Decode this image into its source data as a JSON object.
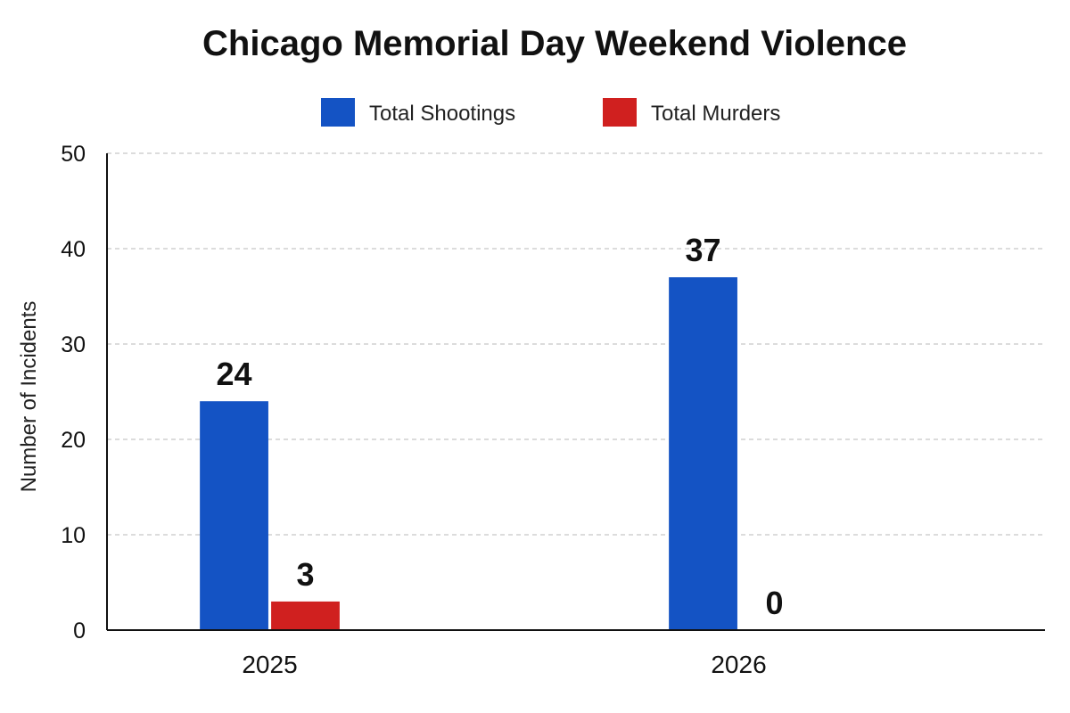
{
  "chart_data": {
    "type": "bar",
    "title": "Chicago Memorial Day Weekend Violence",
    "xlabel": "",
    "ylabel": "Number of Incidents",
    "categories": [
      "2025",
      "2026"
    ],
    "series": [
      {
        "name": "Total Shootings",
        "values": [
          24,
          37
        ],
        "color": "#1453c4"
      },
      {
        "name": "Total Murders",
        "values": [
          3,
          0
        ],
        "color": "#d0201f"
      }
    ],
    "ylim": [
      0,
      50
    ],
    "yticks": [
      0,
      10,
      20,
      30,
      40,
      50
    ],
    "grid": true,
    "legend": "top-center"
  }
}
